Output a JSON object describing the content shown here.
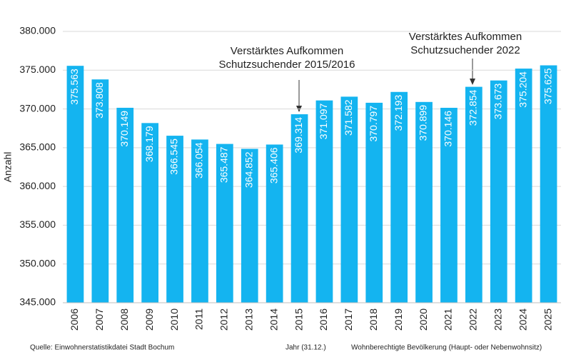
{
  "chart_data": {
    "type": "bar",
    "y_label": "Anzahl",
    "x_label": "Jahr (31.12.)",
    "series_name": "Wohnberechtigte Bevölkerung (Haupt- oder Nebenwohnsitz)",
    "source": "Quelle: Einwohnerstatistikdatei Stadt Bochum",
    "categories": [
      "2006",
      "2007",
      "2008",
      "2009",
      "2010",
      "2011",
      "2012",
      "2013",
      "2014",
      "2015",
      "2016",
      "2017",
      "2018",
      "2019",
      "2020",
      "2021",
      "2022",
      "2023",
      "2024",
      "2025"
    ],
    "values": [
      375563,
      373808,
      370149,
      368179,
      366545,
      366054,
      365487,
      364852,
      365406,
      369314,
      371097,
      371582,
      370797,
      372193,
      370899,
      370146,
      372854,
      373673,
      375204,
      375625
    ],
    "value_labels": [
      "375.563",
      "373.808",
      "370.149",
      "368.179",
      "366.545",
      "366.054",
      "365.487",
      "364.852",
      "365.406",
      "369.314",
      "371.097",
      "371.582",
      "370.797",
      "372.193",
      "370.899",
      "370.146",
      "372.854",
      "373.673",
      "375.204",
      "375.625"
    ],
    "color": "#14b4f0",
    "ylim": [
      345000,
      380000
    ],
    "yticks": [
      {
        "value": 345000,
        "label": "345.000"
      },
      {
        "value": 350000,
        "label": "350.000"
      },
      {
        "value": 355000,
        "label": "355.000"
      },
      {
        "value": 360000,
        "label": "360.000"
      },
      {
        "value": 365000,
        "label": "365.000"
      },
      {
        "value": 370000,
        "label": "370.000"
      },
      {
        "value": 375000,
        "label": "375.000"
      },
      {
        "value": 380000,
        "label": "380.000"
      }
    ],
    "grid": true,
    "annotations": [
      {
        "lines": [
          "Verstärktes Aufkommen",
          "Schutzsuchender 2015/2016"
        ]
      },
      {
        "lines": [
          "Verstärktes Aufkommen",
          "Schutzsuchender 2022"
        ]
      }
    ]
  }
}
